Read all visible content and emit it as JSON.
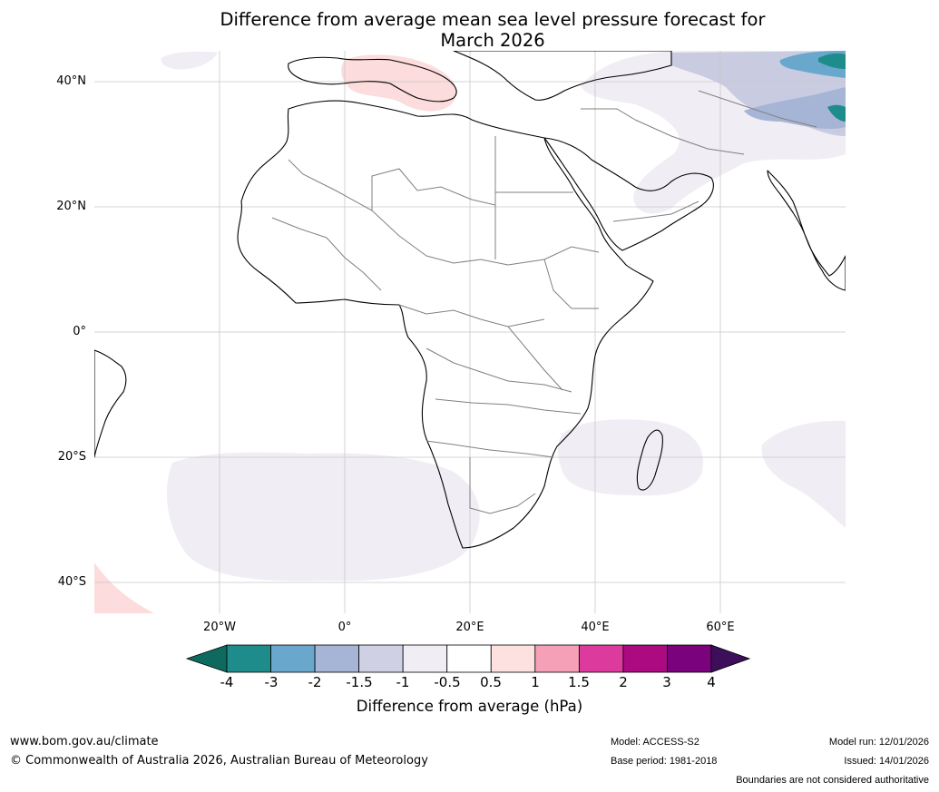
{
  "title": {
    "line1": "Difference from average mean sea level pressure forecast for",
    "line2": "March 2026"
  },
  "map": {
    "latitude_labels": [
      "40°N",
      "20°N",
      "0°",
      "20°S",
      "40°S"
    ],
    "longitude_labels": [
      "20°W",
      "0°",
      "20°E",
      "40°E",
      "60°E"
    ],
    "lat_range": [
      -45,
      45
    ],
    "lon_range": [
      -40,
      80
    ],
    "regions": [
      {
        "name": "western-mediterranean-anomaly",
        "category": "0.5 to 1",
        "color": "#fcdcdc"
      },
      {
        "name": "middle-east-anomaly",
        "category": "-1 to -0.5",
        "color": "#f1edf4"
      },
      {
        "name": "central-asia-anomaly",
        "category": "-2 to -1.5",
        "color": "#c9cbe1"
      },
      {
        "name": "south-atlantic-anomaly",
        "category": "-1 to -0.5",
        "color": "#f1edf4"
      },
      {
        "name": "southwest-indian-ocean-anomaly",
        "category": "-1 to -0.5",
        "color": "#f1edf4"
      },
      {
        "name": "south-america-tip-anomaly",
        "category": "0.5 to 1",
        "color": "#fcdcdc"
      }
    ]
  },
  "colorbar": {
    "label": "Difference from average (hPa)",
    "ticks": [
      "-4",
      "-3",
      "-2",
      "-1.5",
      "-1",
      "-0.5",
      "0.5",
      "1",
      "1.5",
      "2",
      "3",
      "4"
    ],
    "under_color": "#0e6a5f",
    "over_color": "#3d0f5a",
    "colors": [
      "#1f8c8c",
      "#6aa7cd",
      "#a6b5d5",
      "#cfd0e4",
      "#f1edf4",
      "#ffffff",
      "#fde0e0",
      "#f6a0b8",
      "#dc3a9c",
      "#ac0a80",
      "#7a027c"
    ]
  },
  "footer": {
    "url": "www.bom.gov.au/climate",
    "copyright": "© Commonwealth of Australia 2026, Australian Bureau of Meteorology",
    "model": "Model: ACCESS-S2",
    "base_period": "Base period: 1981-2018",
    "model_run": "Model run: 12/01/2026",
    "issued": "Issued: 14/01/2026",
    "disclaimer": "Boundaries are not considered authoritative"
  }
}
